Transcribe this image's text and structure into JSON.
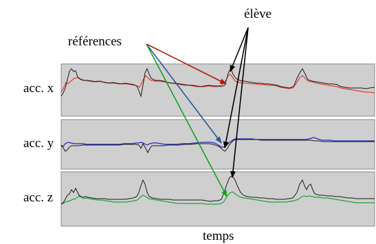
{
  "labels": {
    "eleve": "élève",
    "references": "références",
    "temps": "temps"
  },
  "panels": [
    {
      "label": "acc. x",
      "reference_color": "#e83a2e",
      "student_color": "#1a1a1a"
    },
    {
      "label": "acc. y",
      "reference_color": "#2326c4",
      "student_color": "#1a1a1a"
    },
    {
      "label": "acc. z",
      "reference_color": "#1fa23a",
      "student_color": "#1a1a1a"
    }
  ],
  "arrow_colors": {
    "x": "#b01a0a",
    "y": "#1f5a96",
    "z": "#15a020",
    "eleve": "#000000"
  },
  "panel_background": "#cfcfcf"
}
